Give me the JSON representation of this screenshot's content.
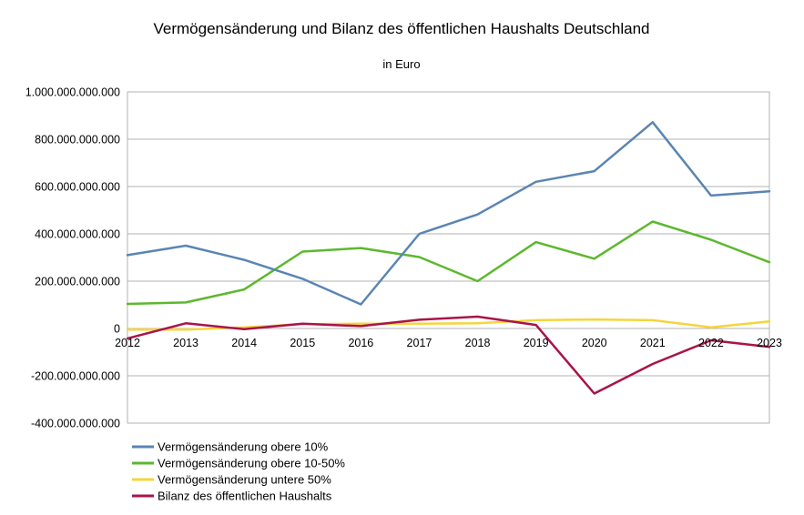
{
  "chart_data": {
    "type": "line",
    "title": "Vermögensänderung und Bilanz des öffentlichen Haushalts Deutschland",
    "subtitle": "in Euro",
    "x": [
      "2012",
      "2013",
      "2014",
      "2015",
      "2016",
      "2017",
      "2018",
      "2019",
      "2020",
      "2021",
      "2022",
      "2023"
    ],
    "ylim": [
      -400000000000,
      1000000000000
    ],
    "yticks": [
      {
        "value": 1000000000000,
        "label": "1.000.000.000.000"
      },
      {
        "value": 800000000000,
        "label": "800.000.000.000"
      },
      {
        "value": 600000000000,
        "label": "600.000.000.000"
      },
      {
        "value": 400000000000,
        "label": "400.000.000.000"
      },
      {
        "value": 200000000000,
        "label": "200.000.000.000"
      },
      {
        "value": 0,
        "label": "0"
      },
      {
        "value": -200000000000,
        "label": "-200.000.000.000"
      },
      {
        "value": -400000000000,
        "label": "-400.000.000.000"
      }
    ],
    "grid": true,
    "legend_position": "bottom-left",
    "series": [
      {
        "name": "Vermögensänderung obere 10%",
        "color": "#5a85b3",
        "values": [
          310000000000,
          350000000000,
          290000000000,
          210000000000,
          102000000000,
          400000000000,
          482000000000,
          620000000000,
          665000000000,
          872000000000,
          562000000000,
          580000000000
        ]
      },
      {
        "name": "Vermögensänderung obere 10-50%",
        "color": "#5cb82e",
        "values": [
          104000000000,
          110000000000,
          165000000000,
          325000000000,
          340000000000,
          302000000000,
          200000000000,
          365000000000,
          295000000000,
          452000000000,
          375000000000,
          280000000000
        ]
      },
      {
        "name": "Vermögensänderung untere 50%",
        "color": "#f5d53e",
        "values": [
          -5000000000,
          -5000000000,
          5000000000,
          18000000000,
          20000000000,
          20000000000,
          22000000000,
          35000000000,
          38000000000,
          35000000000,
          5000000000,
          30000000000
        ]
      },
      {
        "name": "Bilanz des öffentlichen Haushalts",
        "color": "#a8144a",
        "values": [
          -42000000000,
          22000000000,
          -3000000000,
          20000000000,
          10000000000,
          37000000000,
          50000000000,
          15000000000,
          -275000000000,
          -150000000000,
          -50000000000,
          -78000000000
        ]
      }
    ]
  }
}
